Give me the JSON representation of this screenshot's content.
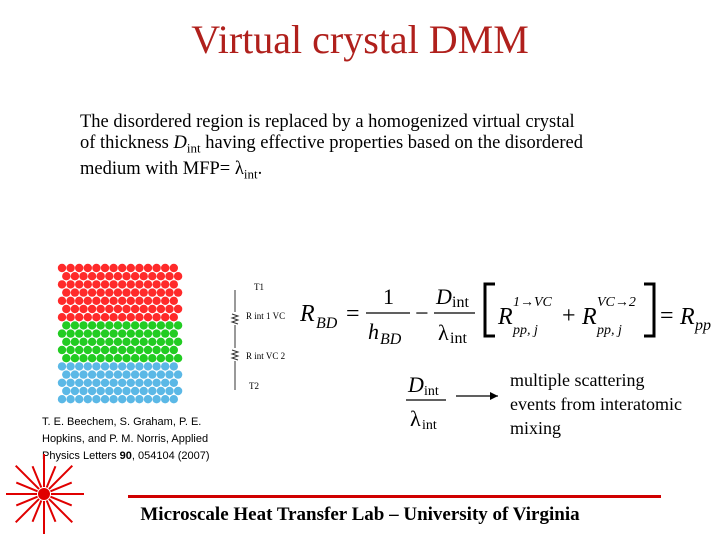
{
  "slide": {
    "title": "Virtual crystal DMM",
    "description": {
      "line1": "The disordered region is replaced by a homogenized virtual crystal",
      "line2_pre": "of thickness ",
      "line2_D": "D",
      "line2_int": "int",
      "line2_post": " having effective properties based on the disordered",
      "line3_pre": "medium with MFP= ",
      "line3_lambda": "λ",
      "line3_int": "int",
      "line3_end": "."
    },
    "lattice_labels": {
      "t1": "T1",
      "r1": "R int 1 VC",
      "r2": "R int VC 2",
      "t2": "T2"
    },
    "citation": {
      "line1": "T. E. Beechem, S. Graham, P. E.",
      "line2": "Hopkins, and P. M. Norris, Applied",
      "line3_pre": "Physics Letters ",
      "line3_vol": "90",
      "line3_post": ", 054104 (2007)"
    },
    "equation": {
      "lhs_R": "R",
      "lhs_sub": "BD",
      "eq": "=",
      "one": "1",
      "h": "h",
      "h_sub": "BD",
      "minus": "−",
      "D": "D",
      "D_sub": "int",
      "lambda": "λ",
      "lambda_sub": "int",
      "R1": "R",
      "R1_sup": "1→VC",
      "R1_sub": "pp, j",
      "plus": "+",
      "R2": "R",
      "R2_sup": "VC→2",
      "R2_sub": "pp, j",
      "rhs_R": "R",
      "rhs_sub": "pp"
    },
    "note": {
      "line1": "multiple scattering",
      "line2": "events from interatomic",
      "line3": "mixing"
    },
    "footer": "Microscale Heat Transfer Lab – University of Virginia",
    "colors": {
      "title": "#b0201c",
      "red_atoms": "#ff2a2a",
      "green_atoms": "#22cc22",
      "blue_atoms": "#5bb8e6",
      "footer_line": "#d00000"
    }
  }
}
